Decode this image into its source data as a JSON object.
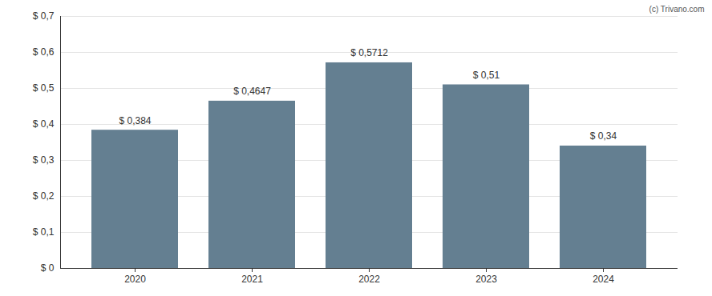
{
  "chart_data": {
    "type": "bar",
    "caption": "(c) Trivano.com",
    "categories": [
      "2020",
      "2021",
      "2022",
      "2023",
      "2024"
    ],
    "values": [
      0.384,
      0.4647,
      0.5712,
      0.51,
      0.34
    ],
    "value_labels": [
      "$ 0,384",
      "$ 0,4647",
      "$ 0,5712",
      "$ 0,51",
      "$ 0,34"
    ],
    "data_labels": true,
    "color": "#647f91",
    "ylim": [
      0,
      0.7
    ],
    "yticks": [
      {
        "value": 0,
        "label": "$ 0"
      },
      {
        "value": 0.1,
        "label": "$ 0,1"
      },
      {
        "value": 0.2,
        "label": "$ 0,2"
      },
      {
        "value": 0.3,
        "label": "$ 0,3"
      },
      {
        "value": 0.4,
        "label": "$ 0,4"
      },
      {
        "value": 0.5,
        "label": "$ 0,5"
      },
      {
        "value": 0.6,
        "label": "$ 0,6"
      },
      {
        "value": 0.7,
        "label": "$ 0,7"
      }
    ],
    "grid": true
  }
}
